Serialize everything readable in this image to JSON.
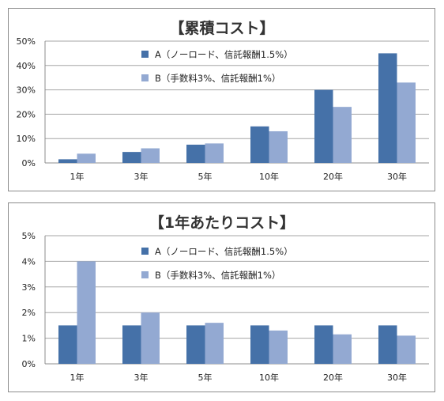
{
  "chart_data": [
    {
      "type": "bar",
      "title": "【累積コスト】",
      "categories": [
        "1年",
        "3年",
        "5年",
        "10年",
        "20年",
        "30年"
      ],
      "series": [
        {
          "name": "A（ノーロード、信託報酬1.5%）",
          "values": [
            1.5,
            4.5,
            7.5,
            15,
            30,
            45
          ],
          "color": "#4571a8"
        },
        {
          "name": "B（手数料3%、信託報酬1%）",
          "values": [
            3.8,
            6,
            8,
            13,
            23,
            33
          ],
          "color": "#93a9d2"
        }
      ],
      "yticks": [
        "0%",
        "10%",
        "20%",
        "30%",
        "40%",
        "50%"
      ],
      "ylim": [
        0,
        50
      ],
      "grid": true,
      "legend": "top-center"
    },
    {
      "type": "bar",
      "title": "【1年あたりコスト】",
      "categories": [
        "1年",
        "3年",
        "5年",
        "10年",
        "20年",
        "30年"
      ],
      "series": [
        {
          "name": "A（ノーロード、信託報酬1.5%）",
          "values": [
            1.5,
            1.5,
            1.5,
            1.5,
            1.5,
            1.5
          ],
          "color": "#4571a8"
        },
        {
          "name": "B（手数料3%、信託報酬1%）",
          "values": [
            4.0,
            2.0,
            1.6,
            1.3,
            1.15,
            1.1
          ],
          "color": "#93a9d2"
        }
      ],
      "yticks": [
        "0%",
        "1%",
        "2%",
        "3%",
        "4%",
        "5%"
      ],
      "ylim": [
        0,
        5
      ],
      "grid": true,
      "legend": "top-center"
    }
  ]
}
